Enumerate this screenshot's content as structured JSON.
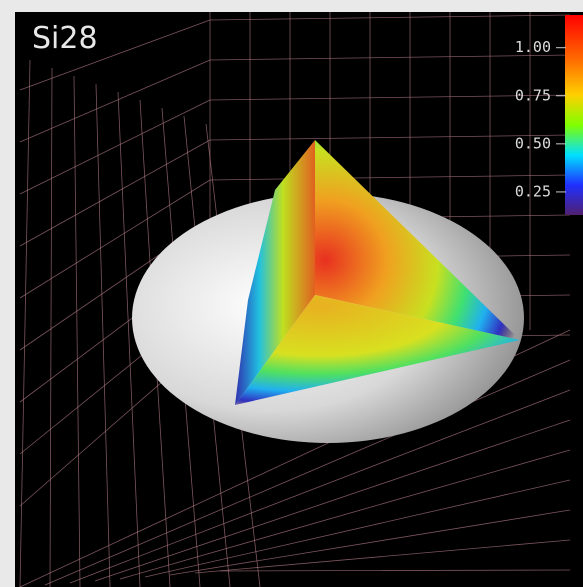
{
  "title": "Si28",
  "colorbar": {
    "range": [
      0.13,
      1.17
    ],
    "ticks": [
      {
        "value": 1,
        "label": "1.00"
      },
      {
        "value": 0.75,
        "label": "0.75"
      },
      {
        "value": 0.5,
        "label": "0.50"
      },
      {
        "value": 0.25,
        "label": "0.25"
      }
    ]
  }
}
